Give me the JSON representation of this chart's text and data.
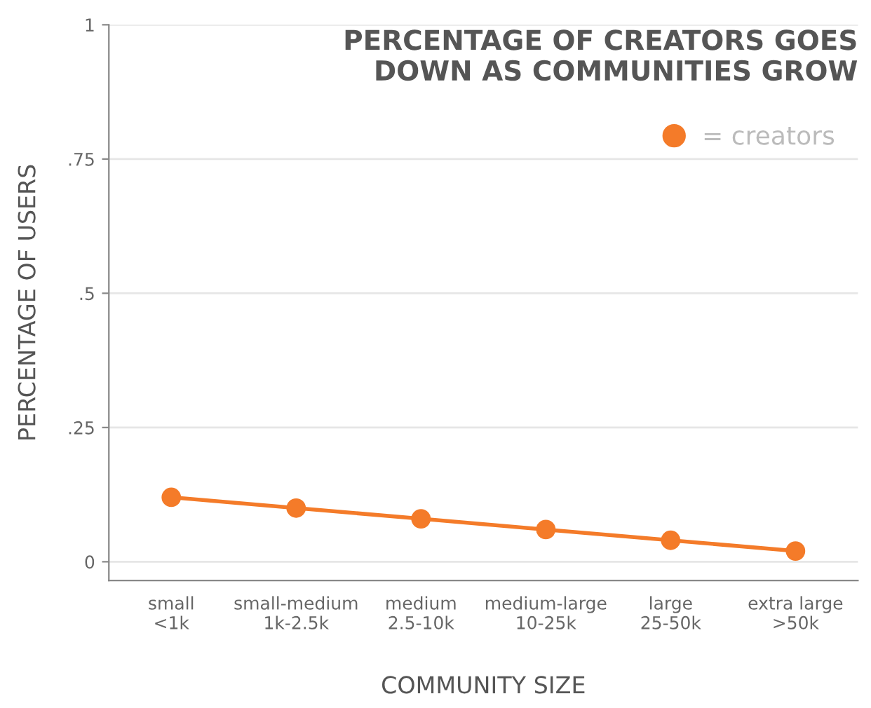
{
  "chart_data": {
    "type": "line",
    "title": "PERCENTAGE OF CREATORS GOES\nDOWN AS COMMUNITIES GROW",
    "xlabel": "COMMUNITY SIZE",
    "ylabel": "PERCENTAGE OF USERS",
    "categories": [
      "small\n<1k",
      "small-medium\n1k-2.5k",
      "medium\n2.5-10k",
      "medium-large\n10-25k",
      "large\n25-50k",
      "extra large\n>50k"
    ],
    "series": [
      {
        "name": "= creators",
        "color": "#f47b29",
        "values": [
          0.12,
          0.1,
          0.08,
          0.06,
          0.04,
          0.02
        ]
      }
    ],
    "ylim": [
      -0.035,
      1
    ],
    "yticks": [
      {
        "value": 0,
        "label": "0"
      },
      {
        "value": 0.25,
        "label": ".25"
      },
      {
        "value": 0.5,
        "label": ".5"
      },
      {
        "value": 0.75,
        "label": ".75"
      },
      {
        "value": 1,
        "label": "1"
      }
    ],
    "grid": "y",
    "legend": "top right",
    "marker": "circle",
    "line_style": "solid"
  }
}
